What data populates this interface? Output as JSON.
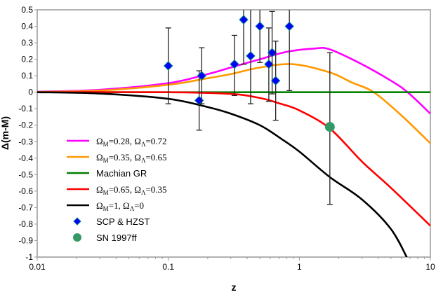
{
  "chart_data": {
    "type": "line",
    "title": "",
    "xlabel": "z",
    "ylabel": "Δ(m-M)",
    "xscale": "log",
    "xlim": [
      0.01,
      10
    ],
    "ylim": [
      -1,
      0.5
    ],
    "x_ticks": [
      "0.01",
      "0.1",
      "1",
      "10"
    ],
    "y_ticks": [
      "0.5",
      "0.4",
      "0.3",
      "0.2",
      "0.1",
      "0",
      "-0.1",
      "-0.2",
      "-0.3",
      "-0.4",
      "-0.5",
      "-0.6",
      "-0.7",
      "-0.8",
      "-0.9",
      "-1"
    ],
    "grid": false,
    "legend_position": "left-middle",
    "series": [
      {
        "name": "ΩM=0.28, ΩΛ=0.72",
        "legend": [
          "Ω",
          "M",
          "=0.28, Ω",
          "Λ",
          "=0.72"
        ],
        "color": "#ff00ff",
        "x": [
          0.01,
          0.03,
          0.1,
          0.2,
          0.3,
          0.5,
          0.8,
          1.3,
          1.71,
          3,
          5,
          6.7,
          10
        ],
        "y": [
          0.003,
          0.015,
          0.055,
          0.11,
          0.15,
          0.2,
          0.245,
          0.265,
          0.26,
          0.17,
          0.07,
          0,
          -0.13
        ]
      },
      {
        "name": "ΩM=0.35, ΩΛ=0.65",
        "legend": [
          "Ω",
          "M",
          "=0.35, Ω",
          "Λ",
          "=0.65"
        ],
        "color": "#ff9900",
        "x": [
          0.01,
          0.03,
          0.1,
          0.2,
          0.3,
          0.5,
          0.9,
          1.71,
          2.5,
          3.7,
          6,
          10
        ],
        "y": [
          0.002,
          0.01,
          0.045,
          0.085,
          0.11,
          0.15,
          0.17,
          0.12,
          0.06,
          0,
          -0.14,
          -0.31
        ]
      },
      {
        "name": "Machian GR",
        "legend": [
          "Machian GR"
        ],
        "color": "#008000",
        "x": [
          0.01,
          10
        ],
        "y": [
          0,
          0
        ]
      },
      {
        "name": "ΩM=0.65, ΩΛ=0.35",
        "legend": [
          "Ω",
          "M",
          "=0.65, Ω",
          "Λ",
          "=0.35"
        ],
        "color": "#ff0000",
        "x": [
          0.01,
          0.1,
          0.3,
          0.5,
          0.72,
          1,
          1.71,
          3,
          5,
          10
        ],
        "y": [
          0,
          0,
          -0.01,
          -0.035,
          -0.07,
          -0.11,
          -0.22,
          -0.42,
          -0.58,
          -0.81
        ]
      },
      {
        "name": "ΩM=1, ΩΛ=0",
        "legend": [
          "Ω",
          "M",
          "=1, Ω",
          "Λ",
          "=0"
        ],
        "color": "#000000",
        "x": [
          0.01,
          0.03,
          0.1,
          0.2,
          0.3,
          0.5,
          0.72,
          1,
          1.71,
          3,
          5,
          6.9,
          8
        ],
        "y": [
          0,
          -0.008,
          -0.04,
          -0.09,
          -0.13,
          -0.2,
          -0.28,
          -0.36,
          -0.515,
          -0.65,
          -0.83,
          -1.03,
          -1.12
        ]
      }
    ],
    "points": [
      {
        "name": "SCP & HZST",
        "marker": "diamond",
        "color": "#0000ff",
        "data": [
          {
            "z": 0.1,
            "y": 0.16,
            "lo": -0.07,
            "hi": 0.39
          },
          {
            "z": 0.172,
            "y": -0.05,
            "lo": -0.23,
            "hi": 0.13
          },
          {
            "z": 0.18,
            "y": 0.1,
            "lo": -0.07,
            "hi": 0.27
          },
          {
            "z": 0.32,
            "y": 0.17,
            "lo": -0.02,
            "hi": 0.345
          },
          {
            "z": 0.376,
            "y": 0.44,
            "lo": 0.17,
            "hi": 0.6
          },
          {
            "z": 0.425,
            "y": 0.22,
            "lo": -0.07,
            "hi": 0.51
          },
          {
            "z": 0.5,
            "y": 0.4,
            "lo": 0.18,
            "hi": 0.6
          },
          {
            "z": 0.585,
            "y": 0.17,
            "lo": -0.055,
            "hi": 0.39
          },
          {
            "z": 0.62,
            "y": 0.24,
            "lo": -0.01,
            "hi": 0.49
          },
          {
            "z": 0.66,
            "y": 0.07,
            "lo": -0.17,
            "hi": 0.31
          },
          {
            "z": 0.84,
            "y": 0.4,
            "lo": 0.01,
            "hi": 0.6
          }
        ]
      },
      {
        "name": "SN 1997ff",
        "marker": "circle",
        "color": "#339966",
        "data": [
          {
            "z": 1.71,
            "y": -0.21,
            "lo": -0.68,
            "hi": 0.24
          }
        ]
      }
    ]
  }
}
